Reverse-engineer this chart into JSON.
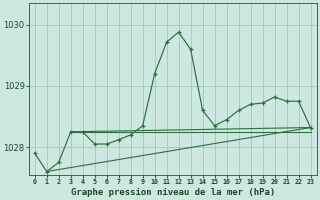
{
  "title": "Graphe pression niveau de la mer (hPa)",
  "background_color": "#cce8e0",
  "grid_color": "#99ccbb",
  "line_color": "#2d6e3e",
  "xlim": [
    -0.5,
    23.5
  ],
  "ylim": [
    1027.55,
    1030.35
  ],
  "yticks": [
    1028,
    1029,
    1030
  ],
  "xlabel_fontsize": 6.5,
  "main_series": {
    "x": [
      0,
      1,
      2,
      3,
      4,
      5,
      6,
      7,
      8,
      9,
      10,
      11,
      12,
      13,
      14,
      15,
      16,
      17,
      18,
      19,
      20,
      21,
      22,
      23
    ],
    "y": [
      1027.9,
      1027.6,
      1027.75,
      1028.25,
      1028.25,
      1028.05,
      1028.05,
      1028.12,
      1028.2,
      1028.35,
      1029.2,
      1029.72,
      1029.88,
      1029.6,
      1028.6,
      1028.35,
      1028.45,
      1028.6,
      1028.7,
      1028.72,
      1028.82,
      1028.75,
      1028.75,
      1028.32
    ]
  },
  "flat_line": {
    "x": [
      3,
      23
    ],
    "y": [
      1028.25,
      1028.25
    ]
  },
  "diag_line1": {
    "x": [
      3,
      23
    ],
    "y": [
      1028.25,
      1028.32
    ]
  },
  "diag_line2": {
    "x": [
      1,
      23
    ],
    "y": [
      1027.6,
      1028.32
    ]
  }
}
